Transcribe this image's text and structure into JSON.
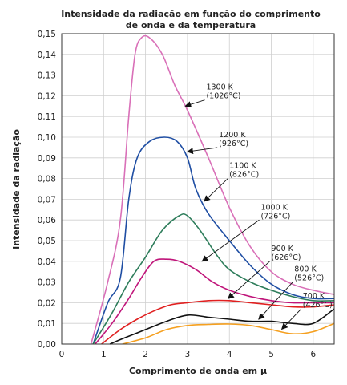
{
  "chart_data": {
    "type": "line",
    "title_lines": [
      "Intensidade da radiação em função do comprimento",
      "de onda e da temperatura"
    ],
    "xlabel": "Comprimento de onda em μ",
    "ylabel": "Intensidade da radiação",
    "xlim": [
      0,
      6.5
    ],
    "ylim": [
      0,
      0.15
    ],
    "x_ticks": [
      0,
      1,
      2,
      3,
      4,
      5,
      6
    ],
    "x_tick_labels": [
      "0",
      "1",
      "2",
      "3",
      "4",
      "5",
      "6"
    ],
    "y_ticks": [
      0,
      0.01,
      0.02,
      0.03,
      0.04,
      0.05,
      0.06,
      0.07,
      0.08,
      0.09,
      0.1,
      0.11,
      0.12,
      0.13,
      0.14,
      0.15
    ],
    "y_tick_labels": [
      "0,00",
      "0,01",
      "0,02",
      "0,03",
      "0,04",
      "0,05",
      "0,06",
      "0,07",
      "0,08",
      "0,09",
      "0,10",
      "0,11",
      "0,12",
      "0,13",
      "0,14",
      "0,15"
    ],
    "grid": true,
    "series": [
      {
        "color": "#d970b8",
        "points": [
          [
            0.7,
            0
          ],
          [
            1.1,
            0.03
          ],
          [
            1.4,
            0.06
          ],
          [
            1.6,
            0.11
          ],
          [
            1.75,
            0.14
          ],
          [
            1.9,
            0.148
          ],
          [
            2.1,
            0.148
          ],
          [
            2.4,
            0.14
          ],
          [
            2.7,
            0.125
          ],
          [
            3.0,
            0.113
          ],
          [
            3.5,
            0.09
          ],
          [
            4.0,
            0.066
          ],
          [
            4.5,
            0.047
          ],
          [
            5.0,
            0.035
          ],
          [
            5.5,
            0.029
          ],
          [
            6.0,
            0.026
          ],
          [
            6.5,
            0.024
          ]
        ]
      },
      {
        "color": "#1f4ea3",
        "points": [
          [
            0.75,
            0
          ],
          [
            1.1,
            0.02
          ],
          [
            1.4,
            0.032
          ],
          [
            1.6,
            0.07
          ],
          [
            1.8,
            0.09
          ],
          [
            2.1,
            0.098
          ],
          [
            2.45,
            0.1
          ],
          [
            2.75,
            0.098
          ],
          [
            3.0,
            0.09
          ],
          [
            3.2,
            0.075
          ],
          [
            3.5,
            0.063
          ],
          [
            4.0,
            0.05
          ],
          [
            4.5,
            0.038
          ],
          [
            5.0,
            0.029
          ],
          [
            5.5,
            0.024
          ],
          [
            6.0,
            0.022
          ],
          [
            6.5,
            0.022
          ]
        ]
      },
      {
        "color": "#2e7d5b",
        "points": [
          [
            0.75,
            0
          ],
          [
            1.2,
            0.015
          ],
          [
            1.6,
            0.03
          ],
          [
            2.0,
            0.042
          ],
          [
            2.4,
            0.055
          ],
          [
            2.8,
            0.062
          ],
          [
            3.0,
            0.062
          ],
          [
            3.3,
            0.055
          ],
          [
            3.7,
            0.043
          ],
          [
            4.0,
            0.036
          ],
          [
            4.5,
            0.03
          ],
          [
            5.0,
            0.026
          ],
          [
            5.5,
            0.023
          ],
          [
            6.0,
            0.021
          ],
          [
            6.5,
            0.021
          ]
        ]
      },
      {
        "color": "#c0157a",
        "points": [
          [
            0.8,
            0
          ],
          [
            1.2,
            0.01
          ],
          [
            1.6,
            0.022
          ],
          [
            1.9,
            0.032
          ],
          [
            2.2,
            0.04
          ],
          [
            2.5,
            0.041
          ],
          [
            2.8,
            0.04
          ],
          [
            3.2,
            0.036
          ],
          [
            3.6,
            0.03
          ],
          [
            4.0,
            0.026
          ],
          [
            4.5,
            0.023
          ],
          [
            5.0,
            0.021
          ],
          [
            5.5,
            0.02
          ],
          [
            6.0,
            0.02
          ],
          [
            6.5,
            0.02
          ]
        ]
      },
      {
        "color": "#e02020",
        "points": [
          [
            0.95,
            0
          ],
          [
            1.4,
            0.007
          ],
          [
            1.8,
            0.012
          ],
          [
            2.2,
            0.016
          ],
          [
            2.6,
            0.019
          ],
          [
            3.0,
            0.02
          ],
          [
            3.5,
            0.021
          ],
          [
            4.0,
            0.021
          ],
          [
            4.5,
            0.02
          ],
          [
            5.0,
            0.019
          ],
          [
            5.5,
            0.018
          ],
          [
            6.0,
            0.018
          ],
          [
            6.5,
            0.019
          ]
        ]
      },
      {
        "color": "#111111",
        "points": [
          [
            1.15,
            0
          ],
          [
            1.5,
            0.003
          ],
          [
            2.0,
            0.007
          ],
          [
            2.5,
            0.011
          ],
          [
            3.0,
            0.014
          ],
          [
            3.5,
            0.013
          ],
          [
            4.0,
            0.012
          ],
          [
            4.5,
            0.011
          ],
          [
            5.0,
            0.011
          ],
          [
            5.5,
            0.01
          ],
          [
            6.0,
            0.01
          ],
          [
            6.5,
            0.017
          ]
        ]
      },
      {
        "color": "#f5a020",
        "points": [
          [
            1.45,
            0
          ],
          [
            2.0,
            0.003
          ],
          [
            2.5,
            0.007
          ],
          [
            3.0,
            0.009
          ],
          [
            3.5,
            0.0095
          ],
          [
            4.0,
            0.0097
          ],
          [
            4.5,
            0.009
          ],
          [
            5.0,
            0.007
          ],
          [
            5.5,
            0.005
          ],
          [
            6.0,
            0.006
          ],
          [
            6.5,
            0.01
          ]
        ]
      }
    ],
    "annotations": [
      {
        "lines": [
          "1300 K",
          "(1026°C)"
        ],
        "text_at": [
          3.45,
          0.123
        ],
        "arrow_to": [
          2.95,
          0.115
        ]
      },
      {
        "lines": [
          "1200 K",
          "(926°C)"
        ],
        "text_at": [
          3.75,
          0.1
        ],
        "arrow_to": [
          3.0,
          0.093
        ]
      },
      {
        "lines": [
          "1100 K",
          "(826°C)"
        ],
        "text_at": [
          4.0,
          0.085
        ],
        "arrow_to": [
          3.4,
          0.069
        ]
      },
      {
        "lines": [
          "1000 K",
          "(726°C)"
        ],
        "text_at": [
          4.75,
          0.065
        ],
        "arrow_to": [
          3.35,
          0.04
        ]
      },
      {
        "lines": [
          "900 K",
          "(626°C)"
        ],
        "text_at": [
          5.0,
          0.045
        ],
        "arrow_to": [
          3.97,
          0.022
        ]
      },
      {
        "lines": [
          "800 K",
          "(526°C)"
        ],
        "text_at": [
          5.55,
          0.035
        ],
        "arrow_to": [
          4.7,
          0.012
        ]
      },
      {
        "lines": [
          "700 K",
          "(426°C)"
        ],
        "text_at": [
          5.75,
          0.022
        ],
        "arrow_to": [
          5.25,
          0.0072
        ]
      }
    ]
  }
}
